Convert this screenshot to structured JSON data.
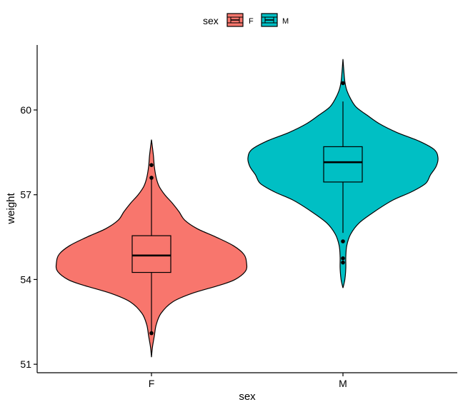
{
  "chart_data": {
    "type": "violin",
    "title": "",
    "xlabel": "sex",
    "ylabel": "weight",
    "ylim": [
      50.7,
      62.3
    ],
    "yticks": [
      51,
      54,
      57,
      60
    ],
    "categories": [
      "F",
      "M"
    ],
    "legend": {
      "title": "sex",
      "position": "top",
      "entries": [
        {
          "label": "F",
          "color": "#F8766D"
        },
        {
          "label": "M",
          "color": "#00BFC4"
        }
      ]
    },
    "series": [
      {
        "category": "F",
        "color": "#F8766D",
        "box": {
          "lower_whisker": 52.15,
          "q1": 54.25,
          "median": 54.85,
          "q3": 55.55,
          "upper_whisker": 57.55
        },
        "outliers": [
          52.1,
          57.6,
          58.05
        ],
        "density": [
          [
            51.25,
            0.0
          ],
          [
            51.6,
            0.01
          ],
          [
            52.0,
            0.03
          ],
          [
            52.4,
            0.05
          ],
          [
            52.8,
            0.1
          ],
          [
            53.2,
            0.22
          ],
          [
            53.5,
            0.42
          ],
          [
            53.8,
            0.72
          ],
          [
            54.0,
            0.88
          ],
          [
            54.3,
            0.99
          ],
          [
            54.6,
            1.0
          ],
          [
            54.9,
            0.97
          ],
          [
            55.2,
            0.86
          ],
          [
            55.5,
            0.68
          ],
          [
            55.8,
            0.48
          ],
          [
            56.1,
            0.35
          ],
          [
            56.4,
            0.29
          ],
          [
            56.7,
            0.22
          ],
          [
            57.0,
            0.14
          ],
          [
            57.3,
            0.08
          ],
          [
            57.6,
            0.05
          ],
          [
            58.0,
            0.03
          ],
          [
            58.4,
            0.02
          ],
          [
            58.95,
            0.0
          ]
        ]
      },
      {
        "category": "M",
        "color": "#00BFC4",
        "box": {
          "lower_whisker": 55.65,
          "q1": 57.45,
          "median": 58.15,
          "q3": 58.7,
          "upper_whisker": 60.3
        },
        "outliers": [
          54.6,
          54.75,
          55.35,
          60.95
        ],
        "density": [
          [
            53.7,
            0.0
          ],
          [
            54.0,
            0.02
          ],
          [
            54.4,
            0.03
          ],
          [
            54.8,
            0.03
          ],
          [
            55.2,
            0.04
          ],
          [
            55.6,
            0.08
          ],
          [
            56.0,
            0.17
          ],
          [
            56.4,
            0.33
          ],
          [
            56.8,
            0.52
          ],
          [
            57.1,
            0.72
          ],
          [
            57.4,
            0.87
          ],
          [
            57.7,
            0.92
          ],
          [
            58.0,
            0.98
          ],
          [
            58.3,
            1.0
          ],
          [
            58.6,
            0.96
          ],
          [
            58.9,
            0.8
          ],
          [
            59.2,
            0.57
          ],
          [
            59.5,
            0.39
          ],
          [
            59.8,
            0.26
          ],
          [
            60.1,
            0.14
          ],
          [
            60.4,
            0.08
          ],
          [
            60.7,
            0.04
          ],
          [
            61.0,
            0.02
          ],
          [
            61.35,
            0.01
          ],
          [
            61.8,
            0.0
          ]
        ]
      }
    ],
    "grid": false
  }
}
